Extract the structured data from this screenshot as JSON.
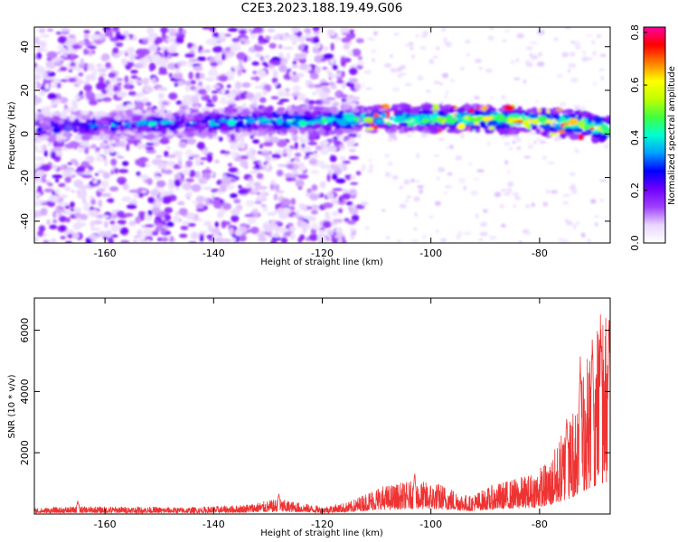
{
  "title": "C2E3.2023.188.19.49.G06",
  "chart_data": [
    {
      "type": "heatmap",
      "title": "C2E3.2023.188.19.49.G06",
      "xlabel": "Height of straight line (km)",
      "ylabel": "Frequency (Hz)",
      "xlim": [
        -173,
        -67
      ],
      "ylim": [
        -50,
        49
      ],
      "x_ticks": [
        -160,
        -140,
        -120,
        -100,
        -80
      ],
      "y_ticks": [
        -40,
        -20,
        0,
        20,
        40
      ],
      "colorbar": {
        "label": "Normalized spectral amplitude",
        "range": [
          0.0,
          0.82
        ],
        "ticks": [
          0.0,
          0.2,
          0.4,
          0.6,
          0.8
        ],
        "colors": [
          "#ffffff",
          "#e9d6ff",
          "#a040ff",
          "#7000ff",
          "#0000ff",
          "#00a0ff",
          "#00ffd0",
          "#40ff40",
          "#c0ff00",
          "#ffff00",
          "#ff8000",
          "#ff0000",
          "#ff00a0"
        ]
      },
      "band": {
        "description_points": [
          {
            "x": -173,
            "y": 3
          },
          {
            "x": -160,
            "y": 4
          },
          {
            "x": -140,
            "y": 5
          },
          {
            "x": -130,
            "y": 6
          },
          {
            "x": -120,
            "y": 6
          },
          {
            "x": -110,
            "y": 7
          },
          {
            "x": -100,
            "y": 7
          },
          {
            "x": -90,
            "y": 7
          },
          {
            "x": -80,
            "y": 6
          },
          {
            "x": -72,
            "y": 4
          },
          {
            "x": -67,
            "y": 2
          }
        ],
        "peak_amplitude": 0.8
      },
      "noise_region_x": [
        -173,
        -113
      ]
    },
    {
      "type": "line",
      "xlabel": "Height of straight line (km)",
      "ylabel": "SNR (10 * v/v)",
      "xlim": [
        -173,
        -67
      ],
      "ylim": [
        0,
        7050
      ],
      "x_ticks": [
        -160,
        -140,
        -120,
        -100,
        -80
      ],
      "y_ticks": [
        2000,
        4000,
        6000
      ],
      "color": "#ee3333",
      "envelope": [
        {
          "x": -173,
          "y": 200
        },
        {
          "x": -165,
          "y": 250
        },
        {
          "x": -155,
          "y": 250
        },
        {
          "x": -145,
          "y": 220
        },
        {
          "x": -135,
          "y": 300
        },
        {
          "x": -128,
          "y": 500
        },
        {
          "x": -120,
          "y": 250
        },
        {
          "x": -115,
          "y": 400
        },
        {
          "x": -110,
          "y": 900
        },
        {
          "x": -103,
          "y": 1100
        },
        {
          "x": -98,
          "y": 1000
        },
        {
          "x": -93,
          "y": 600
        },
        {
          "x": -88,
          "y": 1000
        },
        {
          "x": -82,
          "y": 1300
        },
        {
          "x": -78,
          "y": 1800
        },
        {
          "x": -74,
          "y": 3500
        },
        {
          "x": -71,
          "y": 5500
        },
        {
          "x": -69,
          "y": 6500
        },
        {
          "x": -67,
          "y": 7000
        }
      ],
      "peaks": [
        {
          "x": -165,
          "y": 450
        },
        {
          "x": -128,
          "y": 700
        },
        {
          "x": -103,
          "y": 1400
        },
        {
          "x": -75,
          "y": 3600
        },
        {
          "x": -72.5,
          "y": 5600
        },
        {
          "x": -70.3,
          "y": 6200
        },
        {
          "x": -68.7,
          "y": 6550
        },
        {
          "x": -67.2,
          "y": 7000
        }
      ]
    }
  ]
}
